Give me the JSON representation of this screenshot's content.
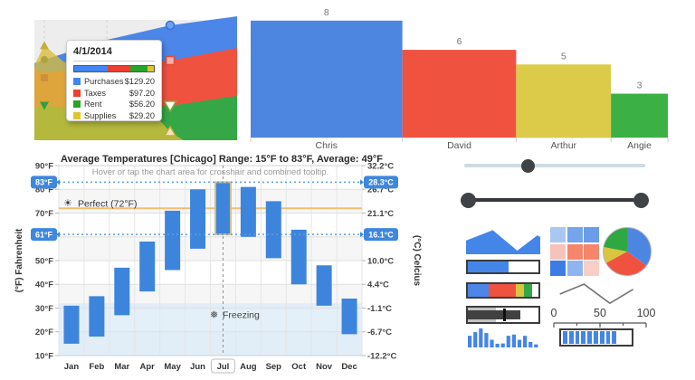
{
  "palette": {
    "blue": "#4c86e8",
    "red": "#f05240",
    "yellow": "#d9c53f",
    "green": "#35a746",
    "temp_bar_blue": "#3d85dc",
    "badge_blue": "#3e87de",
    "dark": "#3c3c3c",
    "orange_line": "#f2bd72",
    "dotted_blue": "#5f9bdf"
  },
  "chart_data": [
    {
      "id": "spending-area",
      "type": "area",
      "series": [
        "Purchases",
        "Taxes",
        "Rent",
        "Supplies"
      ],
      "series_colors": [
        "#4285f4",
        "#ee3e30",
        "#28a428",
        "#e0c431"
      ],
      "tooltip": {
        "date": "4/1/2014",
        "rows": [
          {
            "label": "Purchases",
            "value": "$129.20",
            "color": "#4285f4"
          },
          {
            "label": "Taxes",
            "value": "$97.20",
            "color": "#ee3e30"
          },
          {
            "label": "Rent",
            "value": "$56.20",
            "color": "#28a428"
          },
          {
            "label": "Supplies",
            "value": "$29.20",
            "color": "#e0c431"
          }
        ],
        "bar_fractions": [
          0.42,
          0.29,
          0.21,
          0.08
        ]
      }
    },
    {
      "id": "people-bar",
      "type": "bar",
      "categories": [
        "Chris",
        "David",
        "Arthur",
        "Angie"
      ],
      "values": [
        8,
        6,
        5,
        3
      ],
      "colors": [
        "#4d86e0",
        "#f05240",
        "#dccb49",
        "#3bb044"
      ],
      "width_proportional": true
    },
    {
      "id": "chicago-temps",
      "type": "rangeBar",
      "title": "Average Temperatures [Chicago] Range: 15°F to 83°F, Average: 49°F",
      "subtitle": "Hover or tap the chart area for crosshair and combined tooltip.",
      "ylabel_left": "(°F) Fahrenheit",
      "ylabel_right": "(°C) Celcius",
      "ylim": [
        10,
        90
      ],
      "left_ticks": [
        "90°F",
        "80°F",
        "70°F",
        "60°F",
        "50°F",
        "40°F",
        "30°F",
        "20°F",
        "10°F"
      ],
      "right_ticks": [
        "32.2°C",
        "26.7°C",
        "21.1°C",
        "15.6°C",
        "10.0°C",
        "4.4°C",
        "-1.1°C",
        "-6.7°C",
        "-12.2°C"
      ],
      "months": [
        "Jan",
        "Feb",
        "Mar",
        "Apr",
        "May",
        "Jun",
        "Jul",
        "Aug",
        "Sep",
        "Oct",
        "Nov",
        "Dec"
      ],
      "ranges": [
        [
          15,
          31
        ],
        [
          18,
          35
        ],
        [
          27,
          47
        ],
        [
          37,
          58
        ],
        [
          46,
          71
        ],
        [
          55,
          80
        ],
        [
          61,
          83
        ],
        [
          60,
          81
        ],
        [
          51,
          75
        ],
        [
          40,
          63
        ],
        [
          31,
          48
        ],
        [
          19,
          34
        ]
      ],
      "selected_month": "Jul",
      "constant_lines": [
        {
          "value": 83,
          "label_left": "83°F",
          "label_right": "28.3°C"
        },
        {
          "value": 61,
          "label_left": "61°F",
          "label_right": "16.1°C"
        }
      ],
      "reference_line": {
        "value": 72,
        "label": "Perfect (72°F)",
        "icon": "sun-icon"
      },
      "freezing_zone": {
        "max": 32,
        "label": "Freezing",
        "icon": "snowflake-icon"
      }
    },
    {
      "id": "mini-pie",
      "type": "pie",
      "values": [
        35,
        32,
        11,
        22
      ],
      "colors": [
        "#4d86e0",
        "#f05240",
        "#d9c53f",
        "#2fa742"
      ]
    },
    {
      "id": "mini-area-sparkline",
      "type": "area",
      "points_pct": [
        [
          0,
          48
        ],
        [
          36,
          8
        ],
        [
          69,
          86
        ],
        [
          96,
          28
        ],
        [
          100,
          34
        ]
      ],
      "color": "#4486e8"
    },
    {
      "id": "mini-line-sparkline",
      "type": "line",
      "points_pct": [
        [
          4,
          53
        ],
        [
          33,
          19
        ],
        [
          64,
          85
        ],
        [
          92,
          37
        ]
      ],
      "color": "#737373"
    },
    {
      "id": "mini-columns",
      "type": "bar",
      "values": [
        38,
        50,
        62,
        47,
        25,
        12,
        13,
        38,
        42,
        25,
        38,
        18,
        10
      ],
      "color": "#4486e8"
    }
  ],
  "widgets": {
    "slider": {
      "handle_pct": 35
    },
    "range_slider": {
      "start_pct": 0,
      "end_pct": 100
    },
    "progress_bar": {
      "fill_pct": 58,
      "color": "#4486e8"
    },
    "stacked_bar": {
      "segments": [
        {
          "pct": 29,
          "color": "#4c86e8"
        },
        {
          "pct": 39,
          "color": "#f05240"
        },
        {
          "pct": 11,
          "color": "#d9c53f"
        },
        {
          "pct": 12,
          "color": "#35a746"
        }
      ]
    },
    "bullet": {
      "range_pct": 40,
      "bar_pct": 74,
      "target_pct": 50
    },
    "heatmap_colors": [
      [
        "#a9c7f1",
        "#76a4ec",
        "#6b9ce9"
      ],
      [
        "#f6c3ba",
        "#f5866c",
        "#f5866c"
      ],
      [
        "#3d7ce4",
        "#8fb4ef",
        "#f8cfc7"
      ]
    ],
    "linear_scale": {
      "labels": [
        "0",
        "50",
        "100"
      ],
      "ticks": 5
    },
    "bar_gauge": {
      "segments": 9,
      "color": "#4486e8"
    }
  }
}
